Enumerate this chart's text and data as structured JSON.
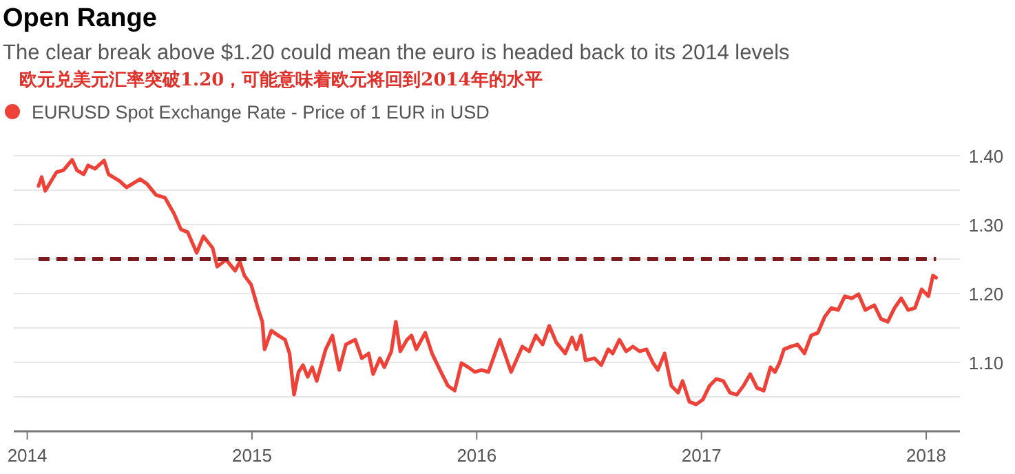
{
  "chart_data": {
    "type": "line",
    "title": "Open Range",
    "subtitle": "The clear break above $1.20 could mean the euro is headed back to its 2014 levels",
    "annotations": [
      "欧元兑美元汇率突破1.20，可能意味着欧元将回到2014年的水平"
    ],
    "legend": "top left",
    "grid": "y",
    "marker": "none",
    "line_style": "solid",
    "xlim": [
      2013.94,
      2018.15
    ],
    "ylim": [
      1.0,
      1.4
    ],
    "xticks": [
      2014,
      2015,
      2016,
      2017,
      2018
    ],
    "yticks": [
      {
        "value": 1.05,
        "label": null
      },
      {
        "value": 1.1,
        "label": "1.10"
      },
      {
        "value": 1.15,
        "label": null
      },
      {
        "value": 1.2,
        "label": "1.20"
      },
      {
        "value": 1.25,
        "label": null
      },
      {
        "value": 1.3,
        "label": "1.30"
      },
      {
        "value": 1.35,
        "label": null
      },
      {
        "value": 1.4,
        "label": "1.40"
      }
    ],
    "ref_lines": [
      {
        "axis": "y",
        "value": 1.25,
        "label": null,
        "color": "#7b1a1f",
        "line_style": "dashed"
      }
    ],
    "series": [
      {
        "name": "EURUSD Spot Exchange Rate - Price of 1 EUR in USD",
        "color": "#ee4137",
        "x": [
          2014.05,
          2014.064,
          2014.08,
          2014.13,
          2014.161,
          2014.2,
          2014.221,
          2014.251,
          2014.271,
          2014.301,
          2014.342,
          2014.362,
          2014.412,
          2014.442,
          2014.502,
          2014.533,
          2014.573,
          2014.613,
          2014.653,
          2014.684,
          2014.714,
          2014.754,
          2014.784,
          2014.825,
          2014.845,
          2014.885,
          2014.925,
          2014.946,
          2014.966,
          2014.996,
          2015.026,
          2015.046,
          2015.056,
          2015.086,
          2015.117,
          2015.147,
          2015.167,
          2015.187,
          2015.207,
          2015.227,
          2015.248,
          2015.268,
          2015.288,
          2015.328,
          2015.358,
          2015.388,
          2015.418,
          2015.459,
          2015.489,
          2015.519,
          2015.539,
          2015.569,
          2015.589,
          2015.62,
          2015.64,
          2015.66,
          2015.69,
          2015.71,
          2015.731,
          2015.771,
          2015.801,
          2015.841,
          2015.872,
          2015.902,
          2015.932,
          2015.962,
          2015.992,
          2016.022,
          2016.052,
          2016.103,
          2016.153,
          2016.203,
          2016.233,
          2016.263,
          2016.293,
          2016.323,
          2016.354,
          2016.394,
          2016.424,
          2016.444,
          2016.464,
          2016.484,
          2016.524,
          2016.554,
          2016.585,
          2016.605,
          2016.635,
          2016.665,
          2016.695,
          2016.725,
          2016.755,
          2016.785,
          2016.806,
          2016.836,
          2016.866,
          2016.896,
          2016.916,
          2016.946,
          2016.976,
          2017.006,
          2017.036,
          2017.066,
          2017.097,
          2017.127,
          2017.157,
          2017.187,
          2017.217,
          2017.247,
          2017.277,
          2017.307,
          2017.327,
          2017.347,
          2017.367,
          2017.398,
          2017.428,
          2017.458,
          2017.488,
          2017.518,
          2017.548,
          2017.578,
          2017.608,
          2017.638,
          2017.669,
          2017.699,
          2017.729,
          2017.769,
          2017.799,
          2017.829,
          2017.859,
          2017.889,
          2017.92,
          2017.95,
          2017.98,
          2018.01,
          2018.03,
          2018.044
        ],
        "values": [
          1.356,
          1.369,
          1.349,
          1.376,
          1.379,
          1.394,
          1.379,
          1.373,
          1.386,
          1.381,
          1.393,
          1.373,
          1.363,
          1.354,
          1.366,
          1.359,
          1.343,
          1.339,
          1.316,
          1.293,
          1.289,
          1.259,
          1.283,
          1.266,
          1.239,
          1.249,
          1.233,
          1.246,
          1.226,
          1.213,
          1.179,
          1.159,
          1.119,
          1.146,
          1.139,
          1.133,
          1.113,
          1.053,
          1.086,
          1.096,
          1.079,
          1.093,
          1.073,
          1.119,
          1.139,
          1.089,
          1.126,
          1.133,
          1.106,
          1.113,
          1.083,
          1.106,
          1.093,
          1.116,
          1.159,
          1.116,
          1.133,
          1.139,
          1.119,
          1.143,
          1.113,
          1.086,
          1.066,
          1.059,
          1.099,
          1.093,
          1.086,
          1.089,
          1.086,
          1.133,
          1.086,
          1.123,
          1.116,
          1.139,
          1.126,
          1.153,
          1.129,
          1.113,
          1.136,
          1.119,
          1.139,
          1.103,
          1.106,
          1.096,
          1.119,
          1.113,
          1.133,
          1.116,
          1.123,
          1.116,
          1.119,
          1.099,
          1.089,
          1.113,
          1.066,
          1.056,
          1.073,
          1.043,
          1.039,
          1.046,
          1.066,
          1.076,
          1.073,
          1.056,
          1.053,
          1.066,
          1.083,
          1.063,
          1.059,
          1.093,
          1.086,
          1.099,
          1.119,
          1.123,
          1.126,
          1.113,
          1.139,
          1.143,
          1.166,
          1.179,
          1.176,
          1.196,
          1.193,
          1.199,
          1.176,
          1.183,
          1.163,
          1.159,
          1.179,
          1.193,
          1.176,
          1.179,
          1.206,
          1.196,
          1.226,
          1.223
        ]
      }
    ]
  }
}
